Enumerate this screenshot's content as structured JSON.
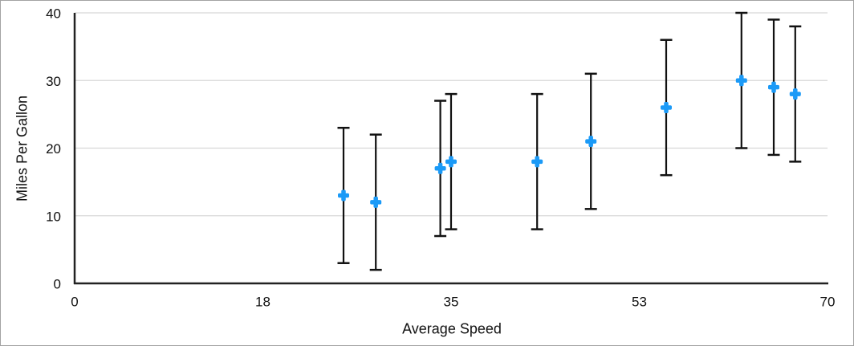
{
  "chart_data": {
    "type": "scatter",
    "title": "",
    "xlabel": "Average Speed",
    "ylabel": "Miles Per Gallon",
    "xlim": [
      0,
      70
    ],
    "ylim": [
      0,
      40
    ],
    "grid": "horizontal-only",
    "legend": "none",
    "x_tick_positions": [
      0,
      17.5,
      35,
      52.5,
      70
    ],
    "x_tick_labels": [
      "0",
      "18",
      "35",
      "53",
      "70"
    ],
    "y_tick_positions": [
      0,
      10,
      20,
      30,
      40
    ],
    "y_tick_labels": [
      "0",
      "10",
      "20",
      "30",
      "40"
    ],
    "gridline_y_values": [
      10,
      20,
      30,
      40
    ],
    "series": [
      {
        "name": "Miles Per Gallon",
        "marker": "plus",
        "points": [
          {
            "x": 25,
            "y": 13,
            "error_y_plus": 10,
            "error_y_minus": 10
          },
          {
            "x": 28,
            "y": 12,
            "error_y_plus": 10,
            "error_y_minus": 10
          },
          {
            "x": 34,
            "y": 17,
            "error_y_plus": 10,
            "error_y_minus": 10
          },
          {
            "x": 35,
            "y": 18,
            "error_y_plus": 10,
            "error_y_minus": 10
          },
          {
            "x": 43,
            "y": 18,
            "error_y_plus": 10,
            "error_y_minus": 10
          },
          {
            "x": 48,
            "y": 21,
            "error_y_plus": 10,
            "error_y_minus": 10
          },
          {
            "x": 55,
            "y": 26,
            "error_y_plus": 10,
            "error_y_minus": 10
          },
          {
            "x": 62,
            "y": 30,
            "error_y_plus": 10,
            "error_y_minus": 10
          },
          {
            "x": 65,
            "y": 29,
            "error_y_plus": 10,
            "error_y_minus": 10
          },
          {
            "x": 67,
            "y": 28,
            "error_y_plus": 10,
            "error_y_minus": 10
          }
        ]
      }
    ],
    "colors": {
      "marker": "#1B9AF7",
      "error_bar": "#111111",
      "gridline": "#D8D8D8",
      "axis_line": "#222222",
      "tick_text": "#111111",
      "background": "#FFFFFF",
      "frame_border": "#A3A3A3"
    },
    "tick_font_size": 17
  }
}
